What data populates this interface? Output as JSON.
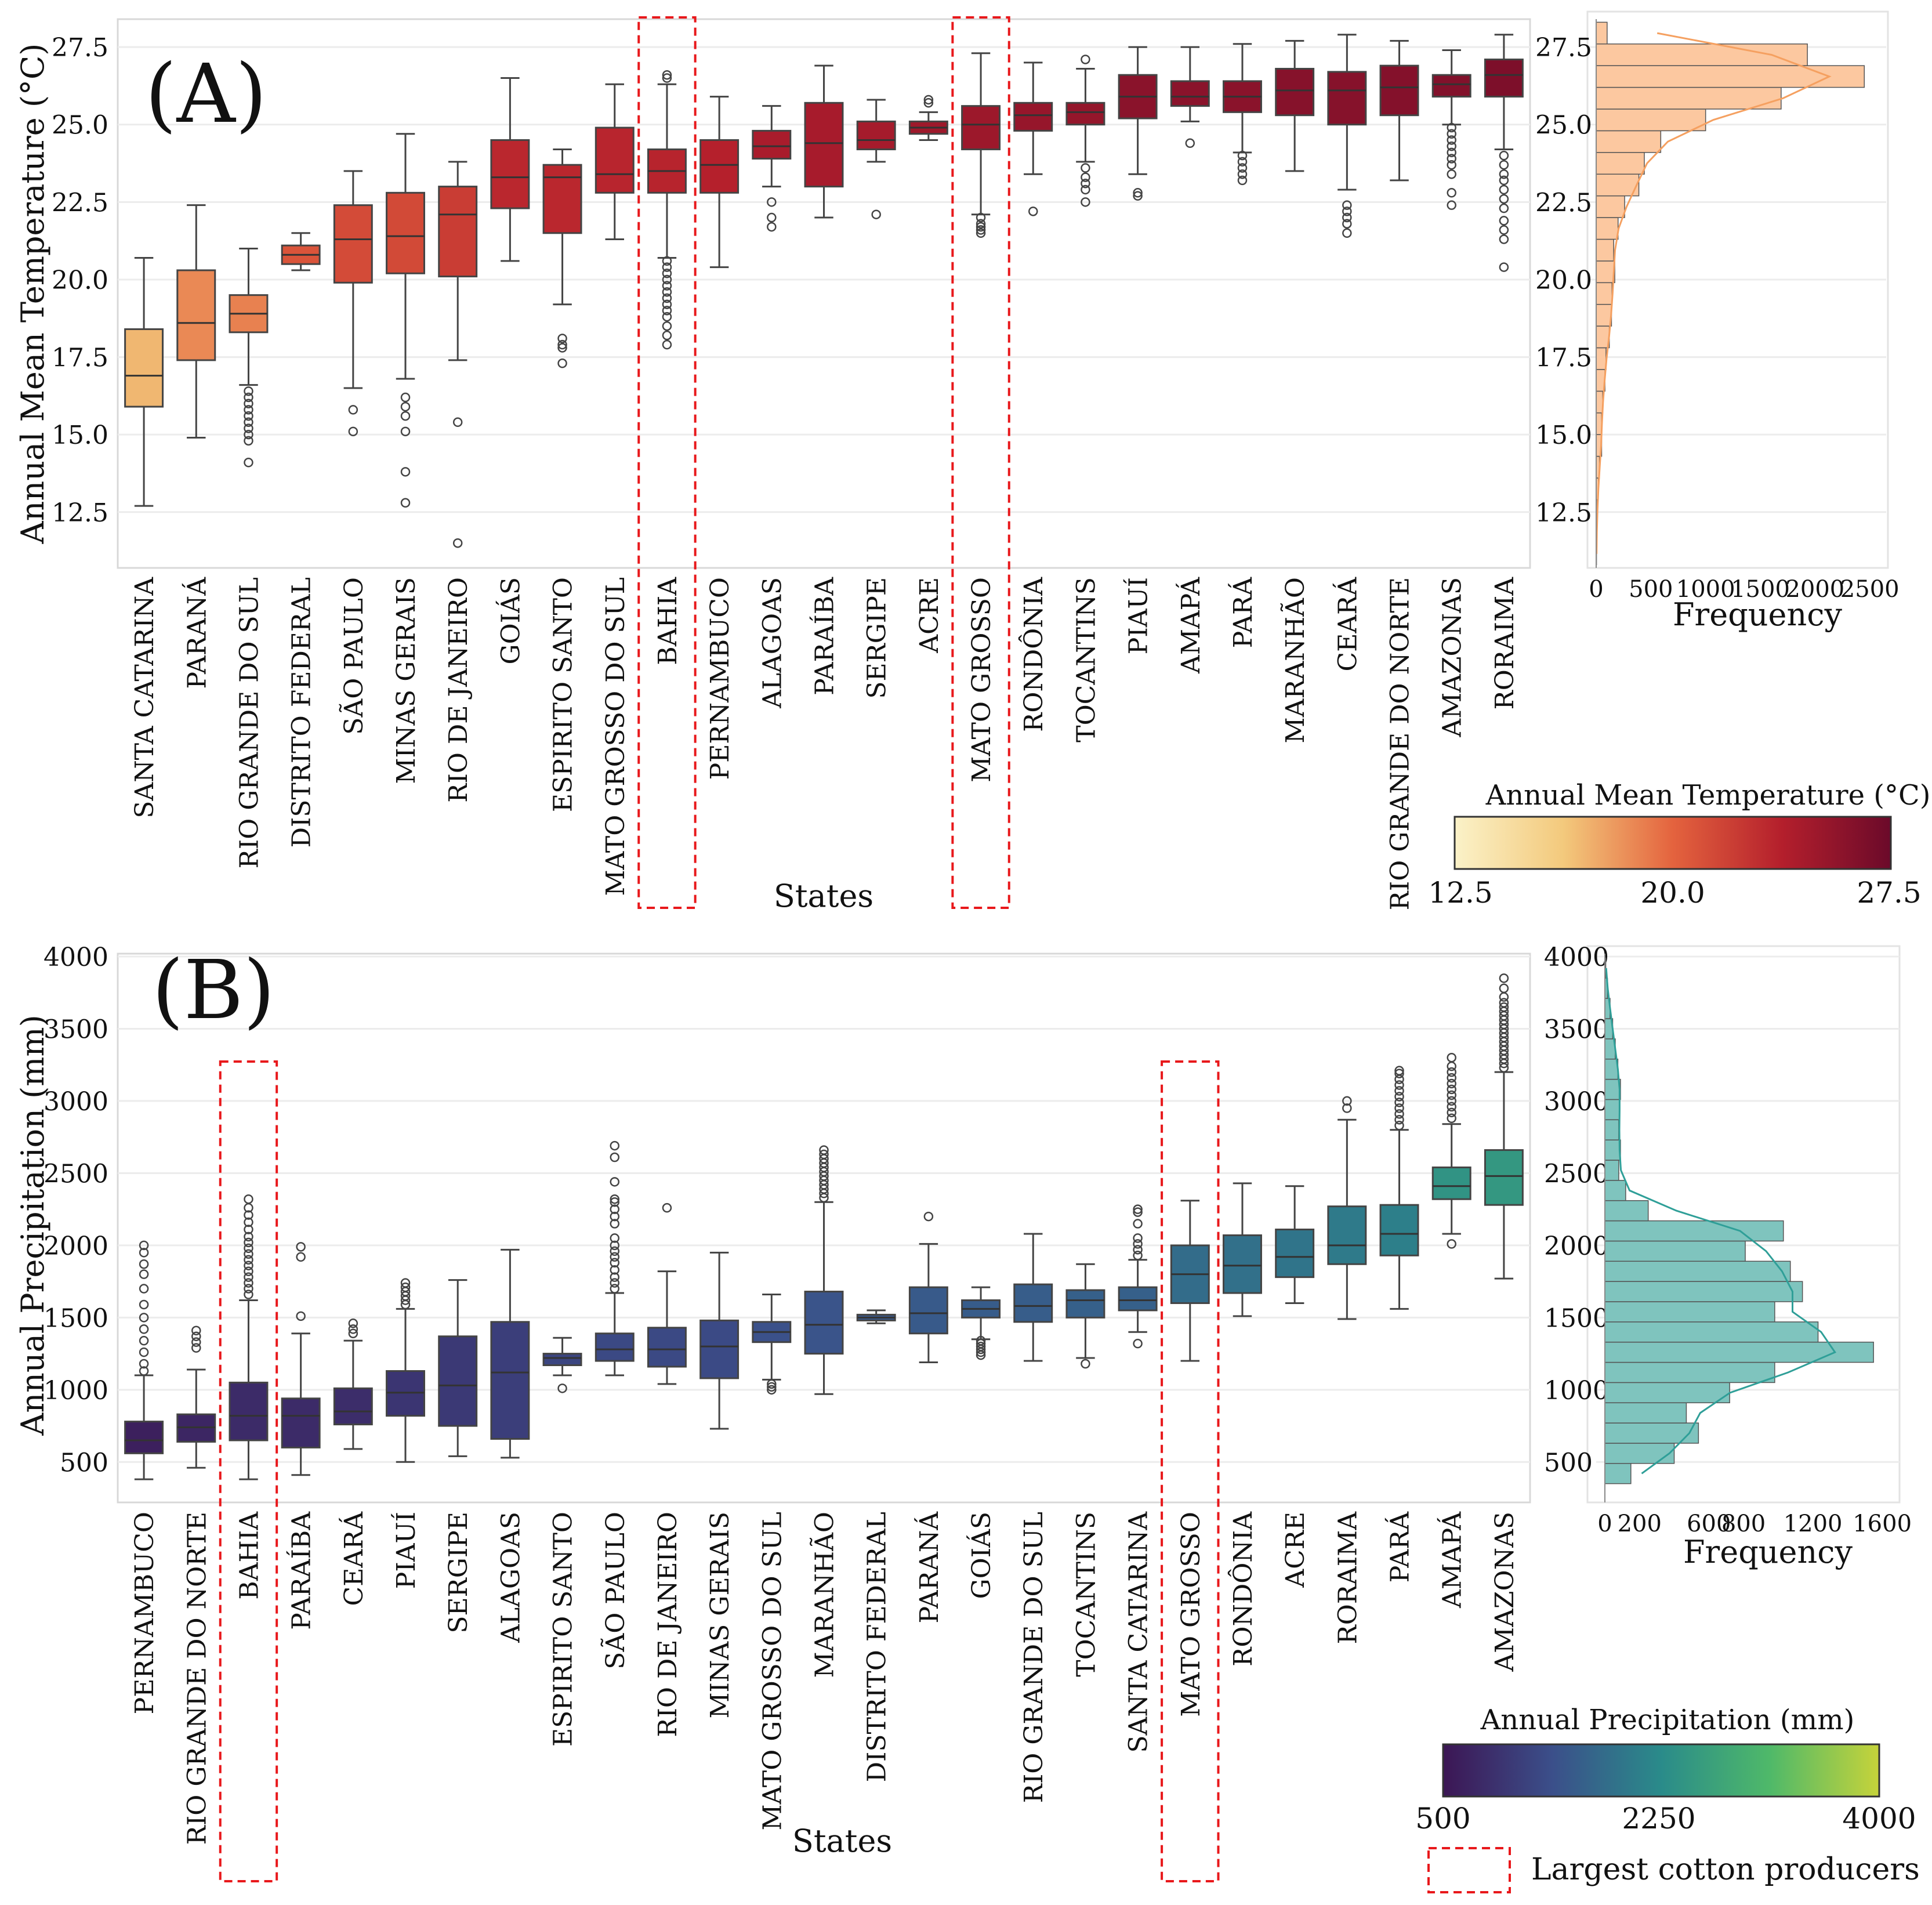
{
  "chart_data": [
    {
      "id": "A",
      "type": "box",
      "panel_label": "(A)",
      "title": "",
      "xlabel": "States",
      "ylabel": "Annual Mean Temperature (°C)",
      "ylim": [
        10.7,
        28.4
      ],
      "yticks": [
        12.5,
        15.0,
        17.5,
        20.0,
        22.5,
        25.0,
        27.5
      ],
      "ytick_labels": [
        "12.5",
        "15.0",
        "17.5",
        "20.0",
        "22.5",
        "25.0",
        "27.5"
      ],
      "categories": [
        "SANTA CATARINA",
        "PARANÁ",
        "RIO GRANDE DO SUL",
        "DISTRITO FEDERAL",
        "SÃO PAULO",
        "MINAS GERAIS",
        "RIO DE JANEIRO",
        "GOIÁS",
        "ESPIRITO SANTO",
        "MATO GROSSO DO SUL",
        "BAHIA",
        "PERNAMBUCO",
        "ALAGOAS",
        "PARAÍBA",
        "SERGIPE",
        "ACRE",
        "MATO GROSSO",
        "RONDÔNIA",
        "TOCANTINS",
        "PIAUÍ",
        "AMAPÁ",
        "PARÁ",
        "MARANHÃO",
        "CEARÁ",
        "RIO GRANDE DO NORTE",
        "AMAZONAS",
        "RORAIMA"
      ],
      "boxes": [
        {
          "whislo": 12.7,
          "q1": 15.9,
          "med": 16.9,
          "q3": 18.4,
          "whishi": 20.7,
          "fliers": []
        },
        {
          "whislo": 14.9,
          "q1": 17.4,
          "med": 18.6,
          "q3": 20.3,
          "whishi": 22.4,
          "fliers": []
        },
        {
          "whislo": 16.6,
          "q1": 18.3,
          "med": 18.9,
          "q3": 19.5,
          "whishi": 21.0,
          "fliers": [
            16.4,
            16.2,
            16.0,
            15.8,
            15.6,
            15.4,
            15.2,
            15.0,
            14.8,
            14.1
          ]
        },
        {
          "whislo": 20.3,
          "q1": 20.5,
          "med": 20.8,
          "q3": 21.1,
          "whishi": 21.5,
          "fliers": []
        },
        {
          "whislo": 16.5,
          "q1": 19.9,
          "med": 21.3,
          "q3": 22.4,
          "whishi": 23.5,
          "fliers": [
            15.8,
            15.1
          ]
        },
        {
          "whislo": 16.8,
          "q1": 20.2,
          "med": 21.4,
          "q3": 22.8,
          "whishi": 24.7,
          "fliers": [
            16.2,
            15.9,
            15.6,
            15.1,
            13.8,
            12.8
          ]
        },
        {
          "whislo": 17.4,
          "q1": 20.1,
          "med": 22.1,
          "q3": 23.0,
          "whishi": 23.8,
          "fliers": [
            15.4,
            11.5
          ]
        },
        {
          "whislo": 20.6,
          "q1": 22.3,
          "med": 23.3,
          "q3": 24.5,
          "whishi": 26.5,
          "fliers": []
        },
        {
          "whislo": 19.2,
          "q1": 21.5,
          "med": 23.3,
          "q3": 23.7,
          "whishi": 24.2,
          "fliers": [
            18.1,
            17.9,
            17.8,
            17.3
          ]
        },
        {
          "whislo": 21.3,
          "q1": 22.8,
          "med": 23.4,
          "q3": 24.9,
          "whishi": 26.3,
          "fliers": []
        },
        {
          "whislo": 20.7,
          "q1": 22.8,
          "med": 23.5,
          "q3": 24.2,
          "whishi": 26.3,
          "fliers": [
            20.6,
            20.4,
            20.2,
            20.0,
            19.8,
            19.6,
            19.4,
            19.2,
            19.0,
            18.8,
            18.5,
            18.2,
            17.9,
            26.5,
            26.6
          ]
        },
        {
          "whislo": 20.4,
          "q1": 22.8,
          "med": 23.7,
          "q3": 24.5,
          "whishi": 25.9,
          "fliers": []
        },
        {
          "whislo": 23.0,
          "q1": 23.9,
          "med": 24.3,
          "q3": 24.8,
          "whishi": 25.6,
          "fliers": [
            22.5,
            22.0,
            21.7
          ]
        },
        {
          "whislo": 22.0,
          "q1": 23.0,
          "med": 24.4,
          "q3": 25.7,
          "whishi": 26.9,
          "fliers": []
        },
        {
          "whislo": 23.8,
          "q1": 24.2,
          "med": 24.5,
          "q3": 25.1,
          "whishi": 25.8,
          "fliers": [
            22.1
          ]
        },
        {
          "whislo": 24.5,
          "q1": 24.7,
          "med": 24.9,
          "q3": 25.1,
          "whishi": 25.4,
          "fliers": [
            25.7,
            25.8
          ]
        },
        {
          "whislo": 22.1,
          "q1": 24.2,
          "med": 25.0,
          "q3": 25.6,
          "whishi": 27.3,
          "fliers": [
            22.0,
            21.8,
            21.7,
            21.6,
            21.5
          ]
        },
        {
          "whislo": 23.4,
          "q1": 24.8,
          "med": 25.3,
          "q3": 25.7,
          "whishi": 27.0,
          "fliers": [
            22.2
          ]
        },
        {
          "whislo": 23.8,
          "q1": 25.0,
          "med": 25.4,
          "q3": 25.7,
          "whishi": 26.8,
          "fliers": [
            27.1,
            23.6,
            23.3,
            23.1,
            22.9,
            22.5
          ]
        },
        {
          "whislo": 23.4,
          "q1": 25.2,
          "med": 25.9,
          "q3": 26.6,
          "whishi": 27.5,
          "fliers": [
            22.8,
            22.7
          ]
        },
        {
          "whislo": 25.1,
          "q1": 25.6,
          "med": 25.9,
          "q3": 26.4,
          "whishi": 27.5,
          "fliers": [
            24.4
          ]
        },
        {
          "whislo": 24.1,
          "q1": 25.4,
          "med": 25.9,
          "q3": 26.4,
          "whishi": 27.6,
          "fliers": [
            24.0,
            23.8,
            23.6,
            23.4,
            23.2
          ]
        },
        {
          "whislo": 23.5,
          "q1": 25.3,
          "med": 26.1,
          "q3": 26.8,
          "whishi": 27.7,
          "fliers": []
        },
        {
          "whislo": 22.9,
          "q1": 25.0,
          "med": 26.1,
          "q3": 26.7,
          "whishi": 27.9,
          "fliers": [
            22.4,
            22.2,
            22.0,
            21.8,
            21.5
          ]
        },
        {
          "whislo": 23.2,
          "q1": 25.3,
          "med": 26.2,
          "q3": 26.9,
          "whishi": 27.7,
          "fliers": []
        },
        {
          "whislo": 25.0,
          "q1": 25.9,
          "med": 26.3,
          "q3": 26.6,
          "whishi": 27.4,
          "fliers": [
            24.9,
            24.7,
            24.5,
            24.3,
            24.1,
            23.9,
            23.7,
            23.4,
            22.8,
            22.4
          ]
        },
        {
          "whislo": 24.2,
          "q1": 25.9,
          "med": 26.6,
          "q3": 27.1,
          "whishi": 27.9,
          "fliers": [
            24.0,
            23.7,
            23.4,
            23.2,
            22.9,
            22.6,
            22.3,
            21.9,
            21.6,
            21.3,
            20.4
          ]
        }
      ],
      "highlighted": [
        "BAHIA",
        "MATO GROSSO"
      ],
      "colorbar": {
        "label": "Annual Mean Temperature (°C)",
        "min": 12.5,
        "max": 27.5,
        "ticks": [
          "12.5",
          "20.0",
          "27.5"
        ],
        "colors": [
          "#fbf2c8",
          "#f3c97c",
          "#e4633e",
          "#b41f2c",
          "#6b0a2a"
        ]
      },
      "histogram": {
        "xlabel": "Frequency",
        "xlim": [
          0,
          2650
        ],
        "xticks": [
          0,
          500,
          1000,
          1500,
          2000,
          2500
        ],
        "xtick_labels": [
          "0",
          "500",
          "1000",
          "1500",
          "2000",
          "2500"
        ],
        "bin_edges": [
          10.8,
          11.5,
          12.2,
          12.9,
          13.6,
          14.3,
          15.0,
          15.7,
          16.4,
          17.1,
          17.8,
          18.5,
          19.2,
          19.9,
          20.6,
          21.3,
          22.0,
          22.7,
          23.4,
          24.1,
          24.8,
          25.5,
          26.2,
          26.9,
          27.6,
          28.3
        ],
        "counts": [
          3,
          6,
          10,
          20,
          30,
          50,
          50,
          60,
          80,
          90,
          120,
          140,
          145,
          170,
          160,
          200,
          260,
          390,
          440,
          590,
          1000,
          1690,
          2450,
          1930,
          100
        ],
        "fill": "#fcc8a0",
        "kde_color": "#f5a060"
      }
    },
    {
      "id": "B",
      "type": "box",
      "panel_label": "(B)",
      "title": "",
      "xlabel": "States",
      "ylabel": "Annual Precipitation (mm)",
      "ylim": [
        220,
        4020
      ],
      "yticks": [
        500,
        1000,
        1500,
        2000,
        2500,
        3000,
        3500,
        4000
      ],
      "ytick_labels": [
        "500",
        "1000",
        "1500",
        "2000",
        "2500",
        "3000",
        "3500",
        "4000"
      ],
      "categories": [
        "PERNAMBUCO",
        "RIO GRANDE DO NORTE",
        "BAHIA",
        "PARAÍBA",
        "CEARÁ",
        "PIAUÍ",
        "SERGIPE",
        "ALAGOAS",
        "ESPIRITO SANTO",
        "SÃO PAULO",
        "RIO DE JANEIRO",
        "MINAS GERAIS",
        "MATO GROSSO DO SUL",
        "MARANHÃO",
        "DISTRITO FEDERAL",
        "PARANÁ",
        "GOIÁS",
        "RIO GRANDE DO SUL",
        "TOCANTINS",
        "SANTA CATARINA",
        "MATO GROSSO",
        "RONDÔNIA",
        "ACRE",
        "RORAIMA",
        "PARÁ",
        "AMAPÁ",
        "AMAZONAS"
      ],
      "boxes": [
        {
          "whislo": 380,
          "q1": 560,
          "med": 650,
          "q3": 780,
          "whishi": 1100,
          "fliers": [
            1130,
            1180,
            1260,
            1340,
            1420,
            1500,
            1590,
            1700,
            1800,
            1870,
            1950,
            2000
          ]
        },
        {
          "whislo": 460,
          "q1": 640,
          "med": 740,
          "q3": 830,
          "whishi": 1140,
          "fliers": [
            1290,
            1330,
            1370,
            1410
          ]
        },
        {
          "whislo": 380,
          "q1": 650,
          "med": 820,
          "q3": 1050,
          "whishi": 1620,
          "fliers": [
            1660,
            1700,
            1740,
            1780,
            1820,
            1860,
            1900,
            1940,
            1980,
            2020,
            2060,
            2110,
            2160,
            2210,
            2260,
            2320
          ]
        },
        {
          "whislo": 410,
          "q1": 600,
          "med": 820,
          "q3": 940,
          "whishi": 1390,
          "fliers": [
            1510,
            1920,
            1990
          ]
        },
        {
          "whislo": 590,
          "q1": 760,
          "med": 850,
          "q3": 1010,
          "whishi": 1340,
          "fliers": [
            1390,
            1420,
            1460
          ]
        },
        {
          "whislo": 500,
          "q1": 820,
          "med": 980,
          "q3": 1130,
          "whishi": 1560,
          "fliers": [
            1590,
            1620,
            1650,
            1680,
            1710,
            1740
          ]
        },
        {
          "whislo": 540,
          "q1": 750,
          "med": 1030,
          "q3": 1370,
          "whishi": 1760,
          "fliers": []
        },
        {
          "whislo": 530,
          "q1": 660,
          "med": 1120,
          "q3": 1470,
          "whishi": 1970,
          "fliers": []
        },
        {
          "whislo": 1100,
          "q1": 1170,
          "med": 1220,
          "q3": 1250,
          "whishi": 1360,
          "fliers": [
            1010
          ]
        },
        {
          "whislo": 1100,
          "q1": 1200,
          "med": 1280,
          "q3": 1390,
          "whishi": 1670,
          "fliers": [
            1700,
            1740,
            1780,
            1830,
            1880,
            1920,
            1960,
            2000,
            2050,
            2150,
            2200,
            2250,
            2300,
            2320,
            2440,
            2610,
            2690
          ]
        },
        {
          "whislo": 1040,
          "q1": 1160,
          "med": 1280,
          "q3": 1430,
          "whishi": 1820,
          "fliers": [
            2260
          ]
        },
        {
          "whislo": 730,
          "q1": 1080,
          "med": 1300,
          "q3": 1480,
          "whishi": 1950,
          "fliers": []
        },
        {
          "whislo": 1070,
          "q1": 1330,
          "med": 1400,
          "q3": 1470,
          "whishi": 1660,
          "fliers": [
            1040,
            1020,
            1000
          ]
        },
        {
          "whislo": 970,
          "q1": 1250,
          "med": 1450,
          "q3": 1680,
          "whishi": 2300,
          "fliers": [
            2330,
            2360,
            2390,
            2420,
            2450,
            2480,
            2510,
            2540,
            2570,
            2600,
            2630,
            2660
          ]
        },
        {
          "whislo": 1460,
          "q1": 1480,
          "med": 1500,
          "q3": 1520,
          "whishi": 1550,
          "fliers": []
        },
        {
          "whislo": 1190,
          "q1": 1390,
          "med": 1530,
          "q3": 1710,
          "whishi": 2010,
          "fliers": [
            2200
          ]
        },
        {
          "whislo": 1350,
          "q1": 1500,
          "med": 1560,
          "q3": 1620,
          "whishi": 1710,
          "fliers": [
            1240,
            1260,
            1280,
            1300,
            1320,
            1340
          ]
        },
        {
          "whislo": 1200,
          "q1": 1470,
          "med": 1580,
          "q3": 1730,
          "whishi": 2080,
          "fliers": []
        },
        {
          "whislo": 1220,
          "q1": 1500,
          "med": 1620,
          "q3": 1690,
          "whishi": 1870,
          "fliers": [
            1180
          ]
        },
        {
          "whislo": 1400,
          "q1": 1550,
          "med": 1620,
          "q3": 1710,
          "whishi": 1900,
          "fliers": [
            1320,
            1930,
            1970,
            2010,
            2050,
            2150,
            2230,
            2250
          ]
        },
        {
          "whislo": 1200,
          "q1": 1600,
          "med": 1800,
          "q3": 2000,
          "whishi": 2310,
          "fliers": []
        },
        {
          "whislo": 1510,
          "q1": 1670,
          "med": 1860,
          "q3": 2070,
          "whishi": 2430,
          "fliers": []
        },
        {
          "whislo": 1600,
          "q1": 1780,
          "med": 1920,
          "q3": 2110,
          "whishi": 2410,
          "fliers": []
        },
        {
          "whislo": 1490,
          "q1": 1870,
          "med": 2000,
          "q3": 2270,
          "whishi": 2870,
          "fliers": [
            2950,
            3000
          ]
        },
        {
          "whislo": 1560,
          "q1": 1930,
          "med": 2080,
          "q3": 2280,
          "whishi": 2800,
          "fliers": [
            2830,
            2870,
            2910,
            2950,
            2990,
            3030,
            3070,
            3110,
            3150,
            3190,
            3210
          ]
        },
        {
          "whislo": 2080,
          "q1": 2320,
          "med": 2410,
          "q3": 2540,
          "whishi": 2840,
          "fliers": [
            2010,
            2880,
            2920,
            2960,
            3000,
            3040,
            3080,
            3120,
            3160,
            3200,
            3240,
            3300
          ]
        },
        {
          "whislo": 1770,
          "q1": 2280,
          "med": 2480,
          "q3": 2660,
          "whishi": 3200,
          "fliers": [
            3230,
            3260,
            3290,
            3320,
            3350,
            3380,
            3410,
            3440,
            3470,
            3500,
            3530,
            3560,
            3590,
            3620,
            3650,
            3680,
            3720,
            3780,
            3850
          ]
        }
      ],
      "highlighted": [
        "BAHIA",
        "MATO GROSSO"
      ],
      "colorbar": {
        "label": "Annual Precipitation (mm)",
        "min": 500,
        "max": 4000,
        "ticks": [
          "500",
          "2250",
          "4000"
        ],
        "colors": [
          "#3c1654",
          "#3b4f8a",
          "#2a8b8a",
          "#4fb969",
          "#c6d33a"
        ]
      },
      "histogram": {
        "xlabel": "Frequency",
        "xlim": [
          0,
          1700
        ],
        "xticks": [
          0,
          200,
          600,
          800,
          1200,
          1600
        ],
        "xtick_labels": [
          "0",
          "200",
          "600",
          "800",
          "1200",
          "1600"
        ],
        "bin_edges": [
          350,
          490,
          630,
          770,
          910,
          1050,
          1190,
          1330,
          1470,
          1610,
          1750,
          1890,
          2030,
          2170,
          2310,
          2450,
          2590,
          2730,
          2870,
          3010,
          3150,
          3290,
          3430,
          3570,
          3710,
          3850,
          3990
        ],
        "counts": [
          150,
          400,
          540,
          470,
          720,
          980,
          1550,
          1230,
          980,
          1140,
          1070,
          810,
          1030,
          250,
          120,
          80,
          90,
          80,
          85,
          90,
          75,
          60,
          45,
          30,
          15,
          5
        ],
        "fill": "#7fc4be",
        "kde_color": "#2f9f98"
      }
    }
  ],
  "legend": {
    "highlight_label": "Largest cotton producers"
  }
}
